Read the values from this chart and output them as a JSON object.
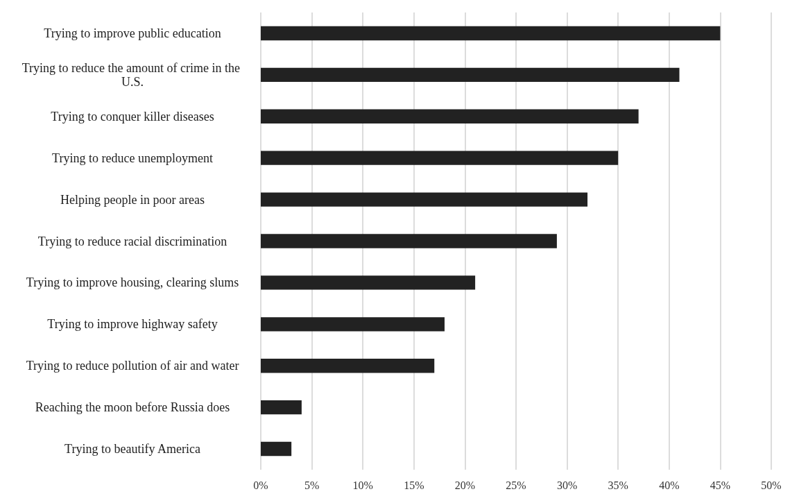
{
  "chart_data": {
    "type": "bar",
    "orientation": "horizontal",
    "categories": [
      "Trying to improve public education",
      "Trying to reduce the amount of crime in the U.S.",
      "Trying to conquer killer diseases",
      "Trying to reduce unemployment",
      "Helping people in poor areas",
      "Trying to reduce racial discrimination",
      "Trying to improve housing, clearing slums",
      "Trying to improve highway safety",
      "Trying to reduce pollution of air and water",
      "Reaching the moon before Russia does",
      "Trying to beautify America"
    ],
    "values": [
      45,
      41,
      37,
      35,
      32,
      29,
      21,
      18,
      17,
      4,
      3
    ],
    "color": "#222222",
    "xlim": [
      0,
      50
    ],
    "xticks": [
      {
        "value": 0,
        "label": "0%"
      },
      {
        "value": 5,
        "label": "5%"
      },
      {
        "value": 10,
        "label": "10%"
      },
      {
        "value": 15,
        "label": "15%"
      },
      {
        "value": 20,
        "label": "20%"
      },
      {
        "value": 25,
        "label": "25%"
      },
      {
        "value": 30,
        "label": "30%"
      },
      {
        "value": 35,
        "label": "35%"
      },
      {
        "value": 40,
        "label": "40%"
      },
      {
        "value": 45,
        "label": "45%"
      },
      {
        "value": 50,
        "label": "50%"
      }
    ],
    "grid": "x"
  }
}
